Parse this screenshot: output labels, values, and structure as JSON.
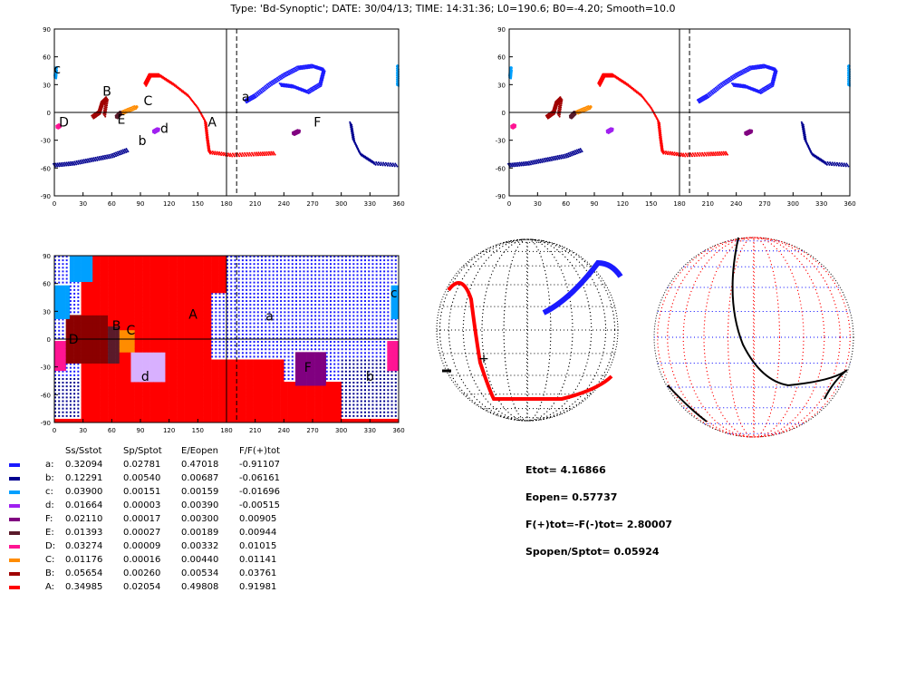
{
  "title": "Type: 'Bd-Synoptic';  DATE: 30/04/13;  TIME: 14:31:36;  L0=190.6; B0=-4.20; Smooth=10.0",
  "chart_data": [
    {
      "type": "scatter",
      "name": "synoptic-labeled",
      "xlim": [
        0,
        360
      ],
      "ylim": [
        -90,
        90
      ],
      "xticks": [
        "0",
        "30",
        "60",
        "90",
        "120",
        "150",
        "180",
        "210",
        "240",
        "270",
        "300",
        "330",
        "360"
      ],
      "yticks": [
        "-90",
        "-60",
        "-30",
        "0",
        "30",
        "60",
        "90"
      ],
      "vlines": [
        180,
        190.6
      ],
      "hline": 0,
      "labels": [
        {
          "text": "c",
          "lon": 3,
          "lat": 42
        },
        {
          "text": "B",
          "lon": 55,
          "lat": 18
        },
        {
          "text": "C",
          "lon": 98,
          "lat": 8
        },
        {
          "text": "D",
          "lon": 10,
          "lat": -15
        },
        {
          "text": "E",
          "lon": 70,
          "lat": -12
        },
        {
          "text": "b",
          "lon": 92,
          "lat": -35
        },
        {
          "text": "d",
          "lon": 115,
          "lat": -22
        },
        {
          "text": "A",
          "lon": 165,
          "lat": -15
        },
        {
          "text": "a",
          "lon": 200,
          "lat": 12
        },
        {
          "text": "F",
          "lon": 275,
          "lat": -15
        }
      ]
    },
    {
      "type": "scatter",
      "name": "synoptic-unlabeled",
      "xlim": [
        0,
        360
      ],
      "ylim": [
        -90,
        90
      ]
    },
    {
      "type": "heatmap",
      "name": "region-map",
      "xlim": [
        0,
        360
      ],
      "ylim": [
        -90,
        90
      ],
      "labels": [
        {
          "text": "A",
          "lon": 145,
          "lat": 22
        },
        {
          "text": "a",
          "lon": 225,
          "lat": 20
        },
        {
          "text": "c",
          "lon": 355,
          "lat": 45
        },
        {
          "text": "B",
          "lon": 65,
          "lat": 10
        },
        {
          "text": "C",
          "lon": 80,
          "lat": 5
        },
        {
          "text": "D",
          "lon": 20,
          "lat": -5
        },
        {
          "text": "d",
          "lon": 95,
          "lat": -45
        },
        {
          "text": "F",
          "lon": 265,
          "lat": -35
        },
        {
          "text": "b",
          "lon": 330,
          "lat": -45
        }
      ]
    }
  ],
  "regions": [
    {
      "id": "a",
      "color": "#1a1aff",
      "pts": [
        [
          200,
          12
        ],
        [
          210,
          18
        ],
        [
          225,
          30
        ],
        [
          240,
          40
        ],
        [
          255,
          48
        ],
        [
          270,
          50
        ],
        [
          282,
          46
        ],
        [
          278,
          30
        ],
        [
          265,
          22
        ],
        [
          250,
          28
        ],
        [
          235,
          30
        ]
      ]
    },
    {
      "id": "b",
      "color": "#000090",
      "pts": [
        [
          0,
          -57
        ],
        [
          20,
          -55
        ],
        [
          40,
          -51
        ],
        [
          60,
          -47
        ],
        [
          78,
          -40
        ]
      ]
    },
    {
      "id": "b2",
      "color": "#000090",
      "pts": [
        [
          310,
          -12
        ],
        [
          313,
          -30
        ],
        [
          320,
          -45
        ],
        [
          335,
          -55
        ],
        [
          360,
          -57
        ]
      ]
    },
    {
      "id": "c",
      "color": "#00a0ff",
      "pts": [
        [
          1,
          38
        ],
        [
          2,
          48
        ]
      ]
    },
    {
      "id": "c2",
      "color": "#00a0ff",
      "pts": [
        [
          359,
          30
        ],
        [
          359,
          50
        ]
      ]
    },
    {
      "id": "d",
      "color": "#a020f0",
      "pts": [
        [
          104,
          -21
        ],
        [
          109,
          -18
        ]
      ]
    },
    {
      "id": "F",
      "color": "#800080",
      "pts": [
        [
          250,
          -23
        ],
        [
          256,
          -20
        ]
      ]
    },
    {
      "id": "E",
      "color": "#5a1a2a",
      "pts": [
        [
          65,
          -5
        ],
        [
          70,
          0
        ]
      ]
    },
    {
      "id": "D",
      "color": "#ff1493",
      "pts": [
        [
          3,
          -16
        ],
        [
          6,
          -14
        ]
      ]
    },
    {
      "id": "C",
      "color": "#ff8c00",
      "pts": [
        [
          72,
          0
        ],
        [
          86,
          6
        ]
      ]
    },
    {
      "id": "B",
      "color": "#a00000",
      "pts": [
        [
          40,
          -5
        ],
        [
          47,
          0
        ],
        [
          50,
          10
        ],
        [
          55,
          15
        ],
        [
          52,
          -5
        ]
      ]
    },
    {
      "id": "A",
      "color": "#ff0000",
      "pts": [
        [
          95,
          30
        ],
        [
          100,
          40
        ],
        [
          110,
          40
        ],
        [
          125,
          30
        ],
        [
          140,
          18
        ],
        [
          150,
          5
        ],
        [
          158,
          -10
        ],
        [
          160,
          -28
        ],
        [
          162,
          -43
        ],
        [
          185,
          -46
        ],
        [
          210,
          -45
        ],
        [
          232,
          -44
        ]
      ]
    }
  ],
  "table": {
    "headers": [
      "Ss/Sstot",
      "Sp/Sptot",
      "E/Eopen",
      "F/F(+)tot"
    ],
    "rows": [
      {
        "label": "a:",
        "color": "#1a1aff",
        "v": [
          "0.32094",
          "0.02781",
          "0.47018",
          "-0.91107"
        ]
      },
      {
        "label": "b:",
        "color": "#000090",
        "v": [
          "0.12291",
          "0.00540",
          "0.00687",
          "-0.06161"
        ]
      },
      {
        "label": "c:",
        "color": "#00a0ff",
        "v": [
          "0.03900",
          "0.00151",
          "0.00159",
          "-0.01696"
        ]
      },
      {
        "label": "d:",
        "color": "#a020f0",
        "v": [
          "0.01664",
          "0.00003",
          "0.00390",
          "-0.00515"
        ]
      },
      {
        "label": "F:",
        "color": "#800080",
        "v": [
          "0.02110",
          "0.00017",
          "0.00300",
          "0.00905"
        ]
      },
      {
        "label": "E:",
        "color": "#5a1a2a",
        "v": [
          "0.01393",
          "0.00027",
          "0.00189",
          "0.00944"
        ]
      },
      {
        "label": "D:",
        "color": "#ff1493",
        "v": [
          "0.03274",
          "0.00009",
          "0.00332",
          "0.01015"
        ]
      },
      {
        "label": "C:",
        "color": "#ff8c00",
        "v": [
          "0.01176",
          "0.00016",
          "0.00440",
          "0.01141"
        ]
      },
      {
        "label": "B:",
        "color": "#a00000",
        "v": [
          "0.05654",
          "0.00260",
          "0.00534",
          "0.03761"
        ]
      },
      {
        "label": "A:",
        "color": "#ff0000",
        "v": [
          "0.34985",
          "0.02054",
          "0.49808",
          "0.91981"
        ]
      }
    ]
  },
  "stats": [
    "Etot=  4.16866",
    "Eopen=  0.57737",
    "F(+)tot=-F(-)tot=  2.80007",
    "Spopen/Sptot=  0.05924"
  ]
}
